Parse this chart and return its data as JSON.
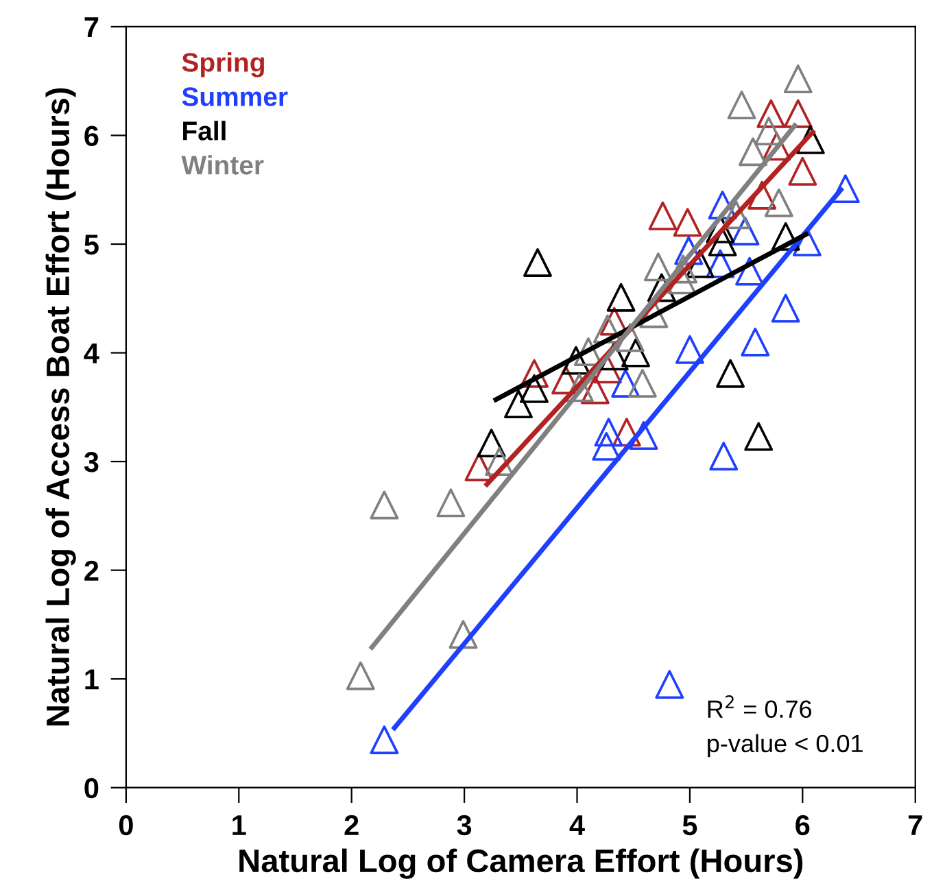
{
  "chart_data": {
    "type": "scatter",
    "xlabel": "Natural Log of Camera Effort (Hours)",
    "ylabel": "Natural Log of Access Boat Effort (Hours)",
    "xlim": [
      0,
      7
    ],
    "ylim": [
      0,
      7
    ],
    "xticks": [
      0,
      1,
      2,
      3,
      4,
      5,
      6,
      7
    ],
    "yticks": [
      0,
      1,
      2,
      3,
      4,
      5,
      6,
      7
    ],
    "grid": false,
    "legend": "top left",
    "marker": "triangle",
    "annotations": [
      "R$^{2}$ = 0.76",
      "p-value < 0.01"
    ],
    "series": [
      {
        "name": "Spring",
        "color": "#b22222",
        "x": [
          3.13,
          3.62,
          3.9,
          4.16,
          4.27,
          4.33,
          4.76,
          4.98,
          5.72,
          5.96,
          5.77,
          6.0,
          5.64,
          5.36,
          5.05,
          4.44
        ],
        "values": [
          2.95,
          3.81,
          3.75,
          3.66,
          3.85,
          4.29,
          5.26,
          5.2,
          6.2,
          6.2,
          5.9,
          5.67,
          5.45,
          null,
          null,
          3.27
        ]
      },
      {
        "name": "Summer",
        "color": "#1f3fff",
        "x": [
          5.29,
          5.49,
          4.99,
          5.27,
          5.53,
          6.38,
          6.04,
          5.85,
          5.58,
          5.0,
          4.43,
          4.28,
          4.26,
          4.59,
          5.3,
          4.82,
          2.29
        ],
        "values": [
          5.36,
          5.12,
          4.94,
          4.82,
          4.75,
          5.51,
          5.02,
          4.41,
          4.1,
          4.03,
          3.72,
          3.27,
          3.14,
          3.24,
          3.05,
          0.95,
          0.44
        ]
      },
      {
        "name": "Fall",
        "color": "#000000",
        "x": [
          3.65,
          4.39,
          4.75,
          4.52,
          4.33,
          3.99,
          3.62,
          3.48,
          5.36,
          5.09,
          5.29,
          5.27,
          5.85,
          6.07,
          3.24,
          5.61
        ],
        "values": [
          4.83,
          4.51,
          4.6,
          4.0,
          3.97,
          3.93,
          3.67,
          3.53,
          3.81,
          4.82,
          5.02,
          5.14,
          5.07,
          5.96,
          3.17,
          3.23
        ]
      },
      {
        "name": "Winter",
        "color": "#808080",
        "x": [
          5.96,
          5.46,
          5.7,
          5.56,
          5.79,
          5.41,
          4.72,
          4.94,
          4.93,
          4.68,
          4.1,
          4.27,
          4.47,
          4.58,
          4.02,
          3.31,
          2.29,
          2.88,
          2.99,
          2.08
        ],
        "values": [
          6.52,
          6.28,
          6.04,
          5.85,
          5.38,
          5.27,
          4.79,
          4.77,
          4.67,
          4.36,
          4.01,
          4.22,
          4.14,
          3.72,
          3.68,
          3.0,
          2.6,
          2.62,
          1.41,
          1.03
        ]
      },
      {
        "type": "line",
        "color": "#b22222",
        "x": [
          3.2,
          6.09
        ],
        "values": [
          2.79,
          6.03
        ],
        "marker": "none"
      },
      {
        "type": "line",
        "color": "#1f3fff",
        "x": [
          2.38,
          6.34
        ],
        "values": [
          0.55,
          5.5
        ],
        "marker": "none"
      },
      {
        "type": "line",
        "color": "#000000",
        "x": [
          3.28,
          6.03
        ],
        "values": [
          3.57,
          5.09
        ],
        "marker": "none"
      },
      {
        "type": "line",
        "color": "#808080",
        "x": [
          2.18,
          5.93
        ],
        "values": [
          1.29,
          6.09
        ],
        "marker": "none"
      }
    ]
  }
}
